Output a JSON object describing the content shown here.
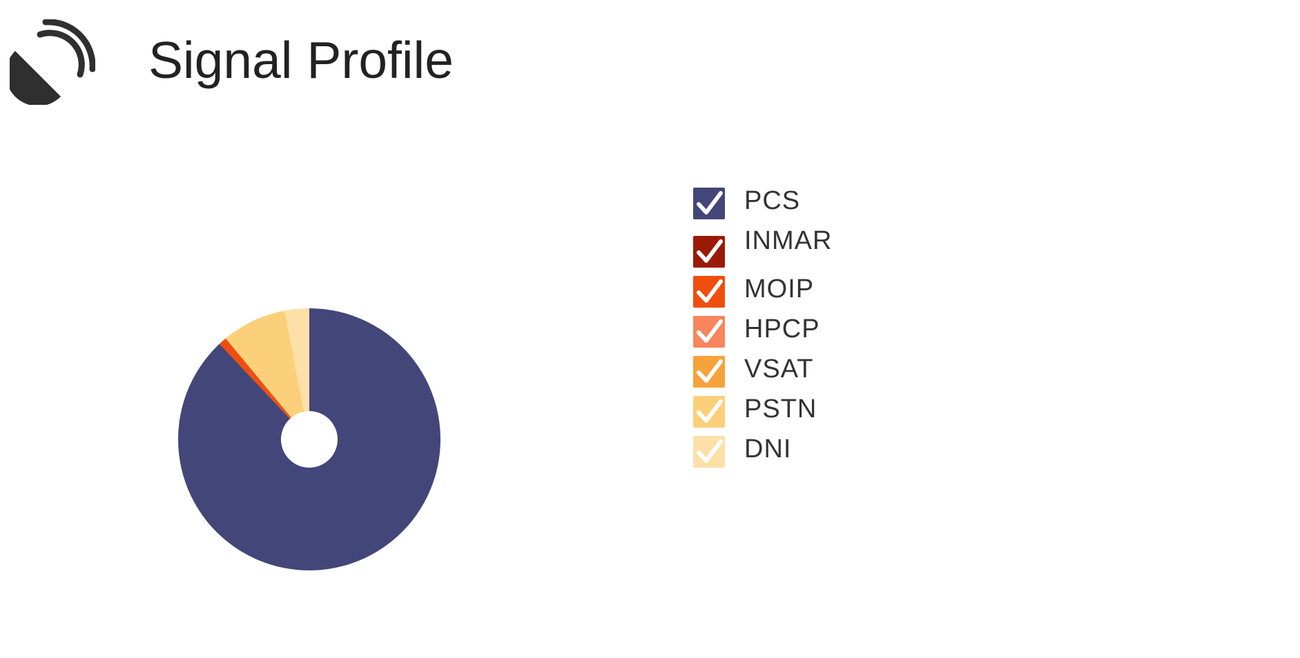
{
  "header": {
    "title": "Signal Profile",
    "icon": "satellite-dish-icon"
  },
  "chart_data": {
    "type": "pie",
    "variant": "donut",
    "title": "",
    "start_angle_deg": 0,
    "slices": [
      {
        "name": "PCS",
        "value": 88.0,
        "color": "#434679"
      },
      {
        "name": "INMAR",
        "value": 0.0,
        "color": "#9b1a05"
      },
      {
        "name": "MOIP",
        "value": 1.0,
        "color": "#f04e0e"
      },
      {
        "name": "HPCP",
        "value": 0.0,
        "color": "#f8855c"
      },
      {
        "name": "VSAT",
        "value": 0.0,
        "color": "#f7a23a"
      },
      {
        "name": "PSTN",
        "value": 8.0,
        "color": "#fcd07a"
      },
      {
        "name": "DNI",
        "value": 3.0,
        "color": "#fde0a8"
      }
    ],
    "legend_position": "right",
    "legend_checked": [
      true,
      true,
      true,
      true,
      true,
      true,
      true
    ]
  }
}
